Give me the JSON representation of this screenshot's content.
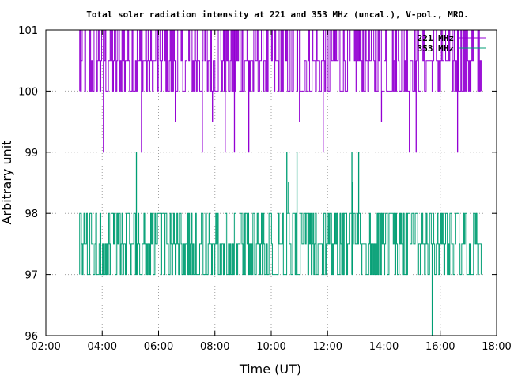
{
  "chart_data": {
    "type": "line",
    "title": "Total solar radiation intensity at 221 and 353 MHz (uncal.), V-pol., MRO.",
    "xlabel": "Time (UT)",
    "ylabel": "Arbitrary unit",
    "xlim": [
      2,
      18
    ],
    "ylim": [
      96,
      101
    ],
    "x_ticks": [
      {
        "value": 2,
        "label": "02:00"
      },
      {
        "value": 4,
        "label": "04:00"
      },
      {
        "value": 6,
        "label": "06:00"
      },
      {
        "value": 8,
        "label": "08:00"
      },
      {
        "value": 10,
        "label": "10:00"
      },
      {
        "value": 12,
        "label": "12:00"
      },
      {
        "value": 14,
        "label": "14:00"
      },
      {
        "value": 16,
        "label": "16:00"
      },
      {
        "value": 18,
        "label": "18:00"
      }
    ],
    "y_ticks": [
      {
        "value": 96,
        "label": "96"
      },
      {
        "value": 97,
        "label": "97"
      },
      {
        "value": 98,
        "label": "98"
      },
      {
        "value": 99,
        "label": "99"
      },
      {
        "value": 100,
        "label": "100"
      },
      {
        "value": 101,
        "label": "101"
      }
    ],
    "grid": true,
    "legend_position": "top-right",
    "series": [
      {
        "name": "221 MHz",
        "color": "#9400d3",
        "x_range": [
          3.2,
          17.45
        ],
        "baseline": 100,
        "levels": [
          100,
          100.5,
          101
        ],
        "dips": [
          {
            "x": 4.05,
            "y": 99
          },
          {
            "x": 5.4,
            "y": 99
          },
          {
            "x": 6.6,
            "y": 99.5
          },
          {
            "x": 7.55,
            "y": 99
          },
          {
            "x": 7.9,
            "y": 99.5
          },
          {
            "x": 8.35,
            "y": 99
          },
          {
            "x": 8.7,
            "y": 99
          },
          {
            "x": 9.2,
            "y": 99
          },
          {
            "x": 11.0,
            "y": 99.5
          },
          {
            "x": 11.85,
            "y": 99
          },
          {
            "x": 13.9,
            "y": 99.5
          },
          {
            "x": 14.9,
            "y": 99
          },
          {
            "x": 15.15,
            "y": 99
          },
          {
            "x": 16.6,
            "y": 99
          }
        ]
      },
      {
        "name": "353 MHz",
        "color": "#009e73",
        "x_range": [
          3.2,
          17.45
        ],
        "baseline": 97,
        "levels": [
          97,
          97.5,
          98
        ],
        "spikes": [
          {
            "x": 5.2,
            "y": 99
          },
          {
            "x": 10.55,
            "y": 99
          },
          {
            "x": 10.6,
            "y": 98.5
          },
          {
            "x": 10.9,
            "y": 99
          },
          {
            "x": 12.85,
            "y": 99
          },
          {
            "x": 12.9,
            "y": 98.5
          },
          {
            "x": 13.1,
            "y": 99
          }
        ],
        "dips": [
          {
            "x": 15.7,
            "y": 96
          }
        ]
      }
    ]
  }
}
